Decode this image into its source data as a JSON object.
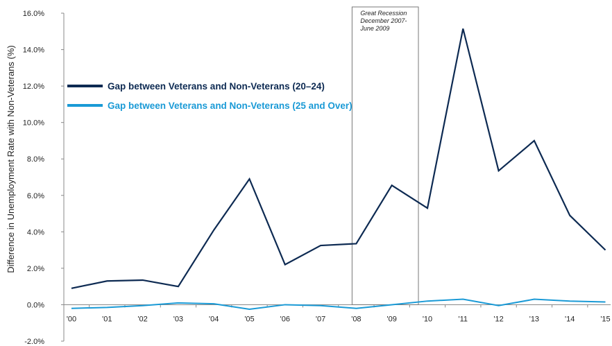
{
  "chart_data": {
    "type": "line",
    "ylabel": "Difference in Unemployment Rate with Non-Veterans (%)",
    "xlabel": "",
    "ylim": [
      -2.0,
      16.0
    ],
    "y_ticks": [
      "-2.0%",
      "0.0%",
      "2.0%",
      "4.0%",
      "6.0%",
      "8.0%",
      "10.0%",
      "12.0%",
      "14.0%",
      "16.0%"
    ],
    "y_tick_values": [
      -2,
      0,
      2,
      4,
      6,
      8,
      10,
      12,
      14,
      16
    ],
    "categories": [
      "'00",
      "'01",
      "'02",
      "'03",
      "'04",
      "'05",
      "'06",
      "'07",
      "'08",
      "'09",
      "'10",
      "'11",
      "'12",
      "'13",
      "'14",
      "'15"
    ],
    "series": [
      {
        "name": "Gap between Veterans and Non-Veterans (20–24)",
        "color": "#0d2a52",
        "values": [
          0.9,
          1.3,
          1.35,
          1.0,
          4.1,
          6.9,
          2.2,
          3.25,
          3.35,
          6.55,
          5.3,
          15.15,
          7.35,
          9.0,
          4.9,
          3.0
        ]
      },
      {
        "name": "Gap between Veterans and Non-Veterans (25 and Over)",
        "color": "#1a9ad6",
        "values": [
          -0.2,
          -0.15,
          -0.05,
          0.1,
          0.05,
          -0.25,
          0.0,
          -0.05,
          -0.2,
          0.0,
          0.2,
          0.3,
          -0.05,
          0.3,
          0.2,
          0.15
        ]
      }
    ],
    "annotation": {
      "lines": [
        "Great Recession",
        "December 2007-",
        "June 2009"
      ],
      "x_start": "'08",
      "x_end": "'10"
    },
    "legend_position": "top-left",
    "grid": false
  }
}
